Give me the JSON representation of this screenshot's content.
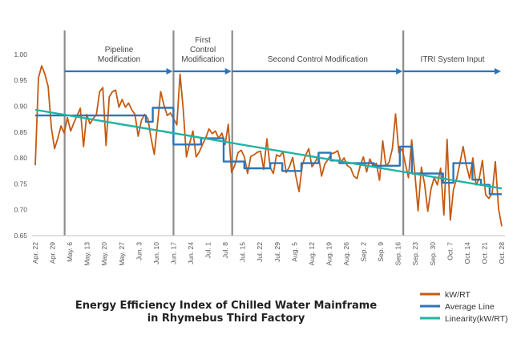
{
  "chart_data": {
    "type": "line",
    "title": [
      "Energy Efficiency Index of Chilled Water Mainframe",
      "in Rhymebus Third Factory"
    ],
    "ylim": [
      0.65,
      1.02
    ],
    "yticks": [
      "0.65",
      "0.70",
      "0.75",
      "0.80",
      "0.85",
      "0.90",
      "0.95",
      "1.00"
    ],
    "xticks": [
      "Apr. 22",
      "Apr. 29",
      "May. 6",
      "May. 13",
      "May. 20",
      "May. 27",
      "Jun. 3",
      "Jun. 10",
      "Jun. 17",
      "Jun. 24",
      "Jul. 1",
      "Jul. 8",
      "Jul. 15",
      "Jul. 22",
      "Jul. 29",
      "Aug. 5",
      "Aug. 12",
      "Aug. 19",
      "Aug. 26",
      "Sep. 2",
      "Sep. 9",
      "Sep. 16",
      "Sep. 23",
      "Sep. 30",
      "Oct. 7",
      "Oct. 14",
      "Oct. 21",
      "Oct. 28"
    ],
    "phases": [
      {
        "label": [
          "Pipeline",
          "Modification"
        ],
        "start": 1.7,
        "end": 8.0
      },
      {
        "label": [
          "First",
          "Control",
          "Modification"
        ],
        "start": 8.0,
        "end": 11.4
      },
      {
        "label": [
          "Second Control Modification"
        ],
        "start": 11.4,
        "end": 21.3
      },
      {
        "label": [
          "ITRI System Input"
        ],
        "start": 21.3,
        "end": 27.0
      }
    ],
    "series": [
      {
        "name": "kW/RT",
        "color": "#c55a11",
        "values": [
          0.786,
          0.955,
          0.978,
          0.962,
          0.938,
          0.858,
          0.818,
          0.838,
          0.862,
          0.848,
          0.878,
          0.852,
          0.868,
          0.882,
          0.896,
          0.822,
          0.884,
          0.866,
          0.876,
          0.884,
          0.928,
          0.936,
          0.824,
          0.918,
          0.928,
          0.931,
          0.898,
          0.913,
          0.898,
          0.906,
          0.893,
          0.884,
          0.842,
          0.873,
          0.884,
          0.876,
          0.838,
          0.807,
          0.866,
          0.928,
          0.902,
          0.882,
          0.887,
          0.876,
          0.864,
          0.962,
          0.894,
          0.802,
          0.829,
          0.852,
          0.802,
          0.812,
          0.826,
          0.839,
          0.856,
          0.847,
          0.852,
          0.838,
          0.848,
          0.826,
          0.865,
          0.772,
          0.786,
          0.81,
          0.815,
          0.802,
          0.77,
          0.803,
          0.806,
          0.811,
          0.813,
          0.778,
          0.837,
          0.782,
          0.77,
          0.806,
          0.803,
          0.812,
          0.772,
          0.783,
          0.801,
          0.765,
          0.735,
          0.786,
          0.805,
          0.818,
          0.783,
          0.792,
          0.805,
          0.765,
          0.788,
          0.797,
          0.808,
          0.81,
          0.814,
          0.792,
          0.8,
          0.785,
          0.781,
          0.765,
          0.76,
          0.785,
          0.802,
          0.773,
          0.798,
          0.784,
          0.79,
          0.757,
          0.833,
          0.784,
          0.792,
          0.818,
          0.885,
          0.81,
          0.818,
          0.79,
          0.762,
          0.835,
          0.77,
          0.698,
          0.782,
          0.75,
          0.697,
          0.74,
          0.762,
          0.748,
          0.78,
          0.69,
          0.836,
          0.68,
          0.74,
          0.76,
          0.79,
          0.822,
          0.786,
          0.76,
          0.8,
          0.748,
          0.76,
          0.795,
          0.729,
          0.722,
          0.732,
          0.793,
          0.702,
          0.668
        ]
      },
      {
        "name": "Average Line",
        "color": "#2e75b6",
        "points": [
          [
            0.0,
            0.882
          ],
          [
            6.4,
            0.882
          ],
          [
            6.4,
            0.87
          ],
          [
            6.8,
            0.87
          ],
          [
            6.8,
            0.897
          ],
          [
            8.0,
            0.897
          ],
          [
            8.0,
            0.826
          ],
          [
            9.6,
            0.826
          ],
          [
            9.6,
            0.838
          ],
          [
            10.9,
            0.838
          ],
          [
            10.9,
            0.793
          ],
          [
            12.1,
            0.793
          ],
          [
            12.1,
            0.78
          ],
          [
            13.6,
            0.78
          ],
          [
            13.6,
            0.79
          ],
          [
            14.3,
            0.79
          ],
          [
            14.3,
            0.775
          ],
          [
            15.4,
            0.775
          ],
          [
            15.4,
            0.79
          ],
          [
            16.4,
            0.79
          ],
          [
            16.4,
            0.81
          ],
          [
            17.1,
            0.81
          ],
          [
            17.1,
            0.795
          ],
          [
            17.6,
            0.795
          ],
          [
            17.6,
            0.79
          ],
          [
            19.6,
            0.79
          ],
          [
            19.6,
            0.785
          ],
          [
            21.1,
            0.785
          ],
          [
            21.1,
            0.822
          ],
          [
            21.8,
            0.822
          ],
          [
            21.8,
            0.77
          ],
          [
            23.6,
            0.77
          ],
          [
            23.6,
            0.752
          ],
          [
            24.2,
            0.752
          ],
          [
            24.2,
            0.79
          ],
          [
            25.3,
            0.79
          ],
          [
            25.3,
            0.758
          ],
          [
            25.8,
            0.758
          ],
          [
            25.8,
            0.748
          ],
          [
            26.3,
            0.748
          ],
          [
            26.3,
            0.73
          ],
          [
            27.0,
            0.73
          ]
        ]
      },
      {
        "name": "Linearity(kW/RT)",
        "color": "#1fb4a4",
        "points": [
          [
            0.0,
            0.893
          ],
          [
            27.0,
            0.741
          ]
        ]
      }
    ],
    "legend_position": "bottom-right",
    "grid": false
  }
}
